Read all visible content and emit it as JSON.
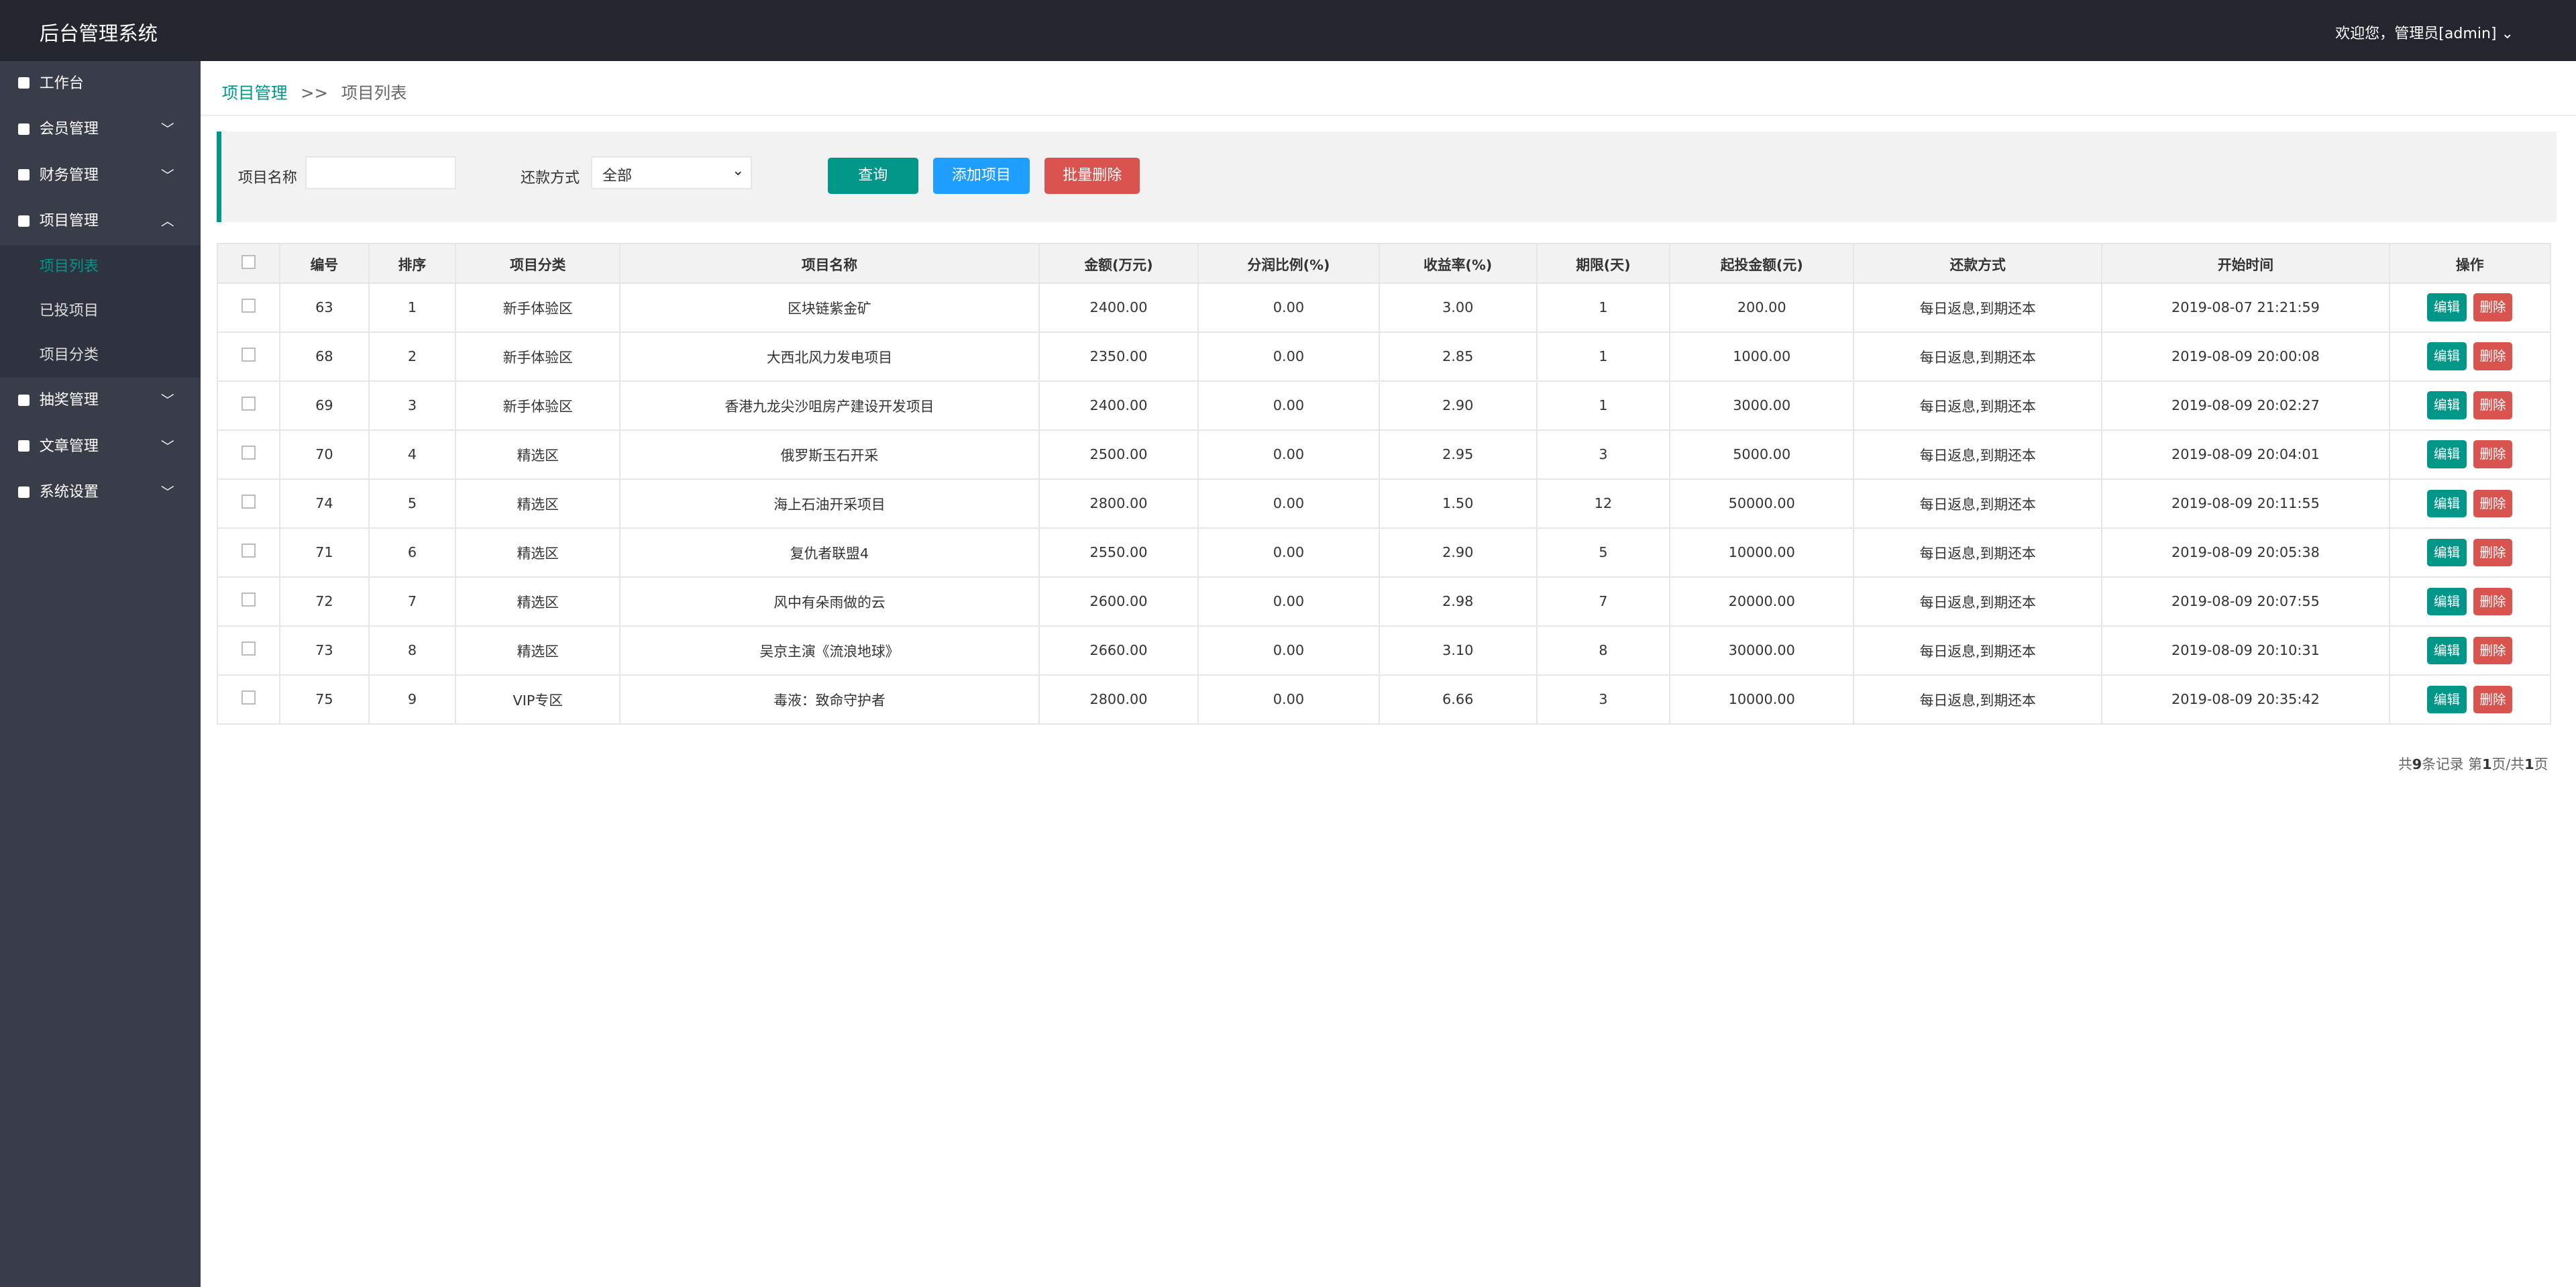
{
  "header": {
    "title": "后台管理系统",
    "user": "欢迎您，管理员[admin]"
  },
  "sidebar": [
    {
      "label": "工作台"
    },
    {
      "label": "会员管理"
    },
    {
      "label": "财务管理"
    },
    {
      "label": "项目管理",
      "children": [
        "项目列表",
        "已投项目",
        "项目分类"
      ]
    },
    {
      "label": "抽奖管理"
    },
    {
      "label": "文章管理"
    },
    {
      "label": "系统设置"
    }
  ],
  "breadcrumb": [
    "项目管理",
    ">>",
    "项目列表"
  ],
  "filter": {
    "name_label": "项目名称",
    "repay_label": "还款方式",
    "repay_option": "全部",
    "buttons": [
      "查询",
      "添加项目",
      "批量删除"
    ]
  },
  "table": {
    "headers": [
      "编号",
      "排序",
      "项目分类",
      "项目名称",
      "金额(万元)",
      "分润比例(%)",
      "收益率(%)",
      "期限(天)",
      "起投金额(元)",
      "还款方式",
      "开始时间",
      "操作"
    ],
    "rows": [
      [
        "63",
        "1",
        "新手体验区",
        "区块链紫金矿",
        "2400.00",
        "0.00",
        "3.00",
        "1",
        "200.00",
        "每日返息,到期还本",
        "2019-08-07 21:21:59"
      ],
      [
        "68",
        "2",
        "新手体验区",
        "大西北风力发电项目",
        "2350.00",
        "0.00",
        "2.85",
        "1",
        "1000.00",
        "每日返息,到期还本",
        "2019-08-09 20:00:08"
      ],
      [
        "69",
        "3",
        "新手体验区",
        "香港九龙尖沙咀房产建设开发项目",
        "2400.00",
        "0.00",
        "2.90",
        "1",
        "3000.00",
        "每日返息,到期还本",
        "2019-08-09 20:02:27"
      ],
      [
        "70",
        "4",
        "精选区",
        "俄罗斯玉石开采",
        "2500.00",
        "0.00",
        "2.95",
        "3",
        "5000.00",
        "每日返息,到期还本",
        "2019-08-09 20:04:01"
      ],
      [
        "74",
        "5",
        "精选区",
        "海上石油开采项目",
        "2800.00",
        "0.00",
        "1.50",
        "12",
        "50000.00",
        "每日返息,到期还本",
        "2019-08-09 20:11:55"
      ],
      [
        "71",
        "6",
        "精选区",
        "复仇者联盟4",
        "2550.00",
        "0.00",
        "2.90",
        "5",
        "10000.00",
        "每日返息,到期还本",
        "2019-08-09 20:05:38"
      ],
      [
        "72",
        "7",
        "精选区",
        "风中有朵雨做的云",
        "2600.00",
        "0.00",
        "2.98",
        "7",
        "20000.00",
        "每日返息,到期还本",
        "2019-08-09 20:07:55"
      ],
      [
        "73",
        "8",
        "精选区",
        "吴京主演《流浪地球》",
        "2660.00",
        "0.00",
        "3.10",
        "8",
        "30000.00",
        "每日返息,到期还本",
        "2019-08-09 20:10:31"
      ],
      [
        "75",
        "9",
        "VIP专区",
        "毒液：致命守护者",
        "2800.00",
        "0.00",
        "6.66",
        "3",
        "10000.00",
        "每日返息,到期还本",
        "2019-08-09 20:35:42"
      ]
    ],
    "actions": [
      "编辑",
      "删除"
    ]
  },
  "pagination": [
    "共",
    "9",
    "条记录 第",
    "1",
    "页/共",
    "1",
    "页"
  ]
}
